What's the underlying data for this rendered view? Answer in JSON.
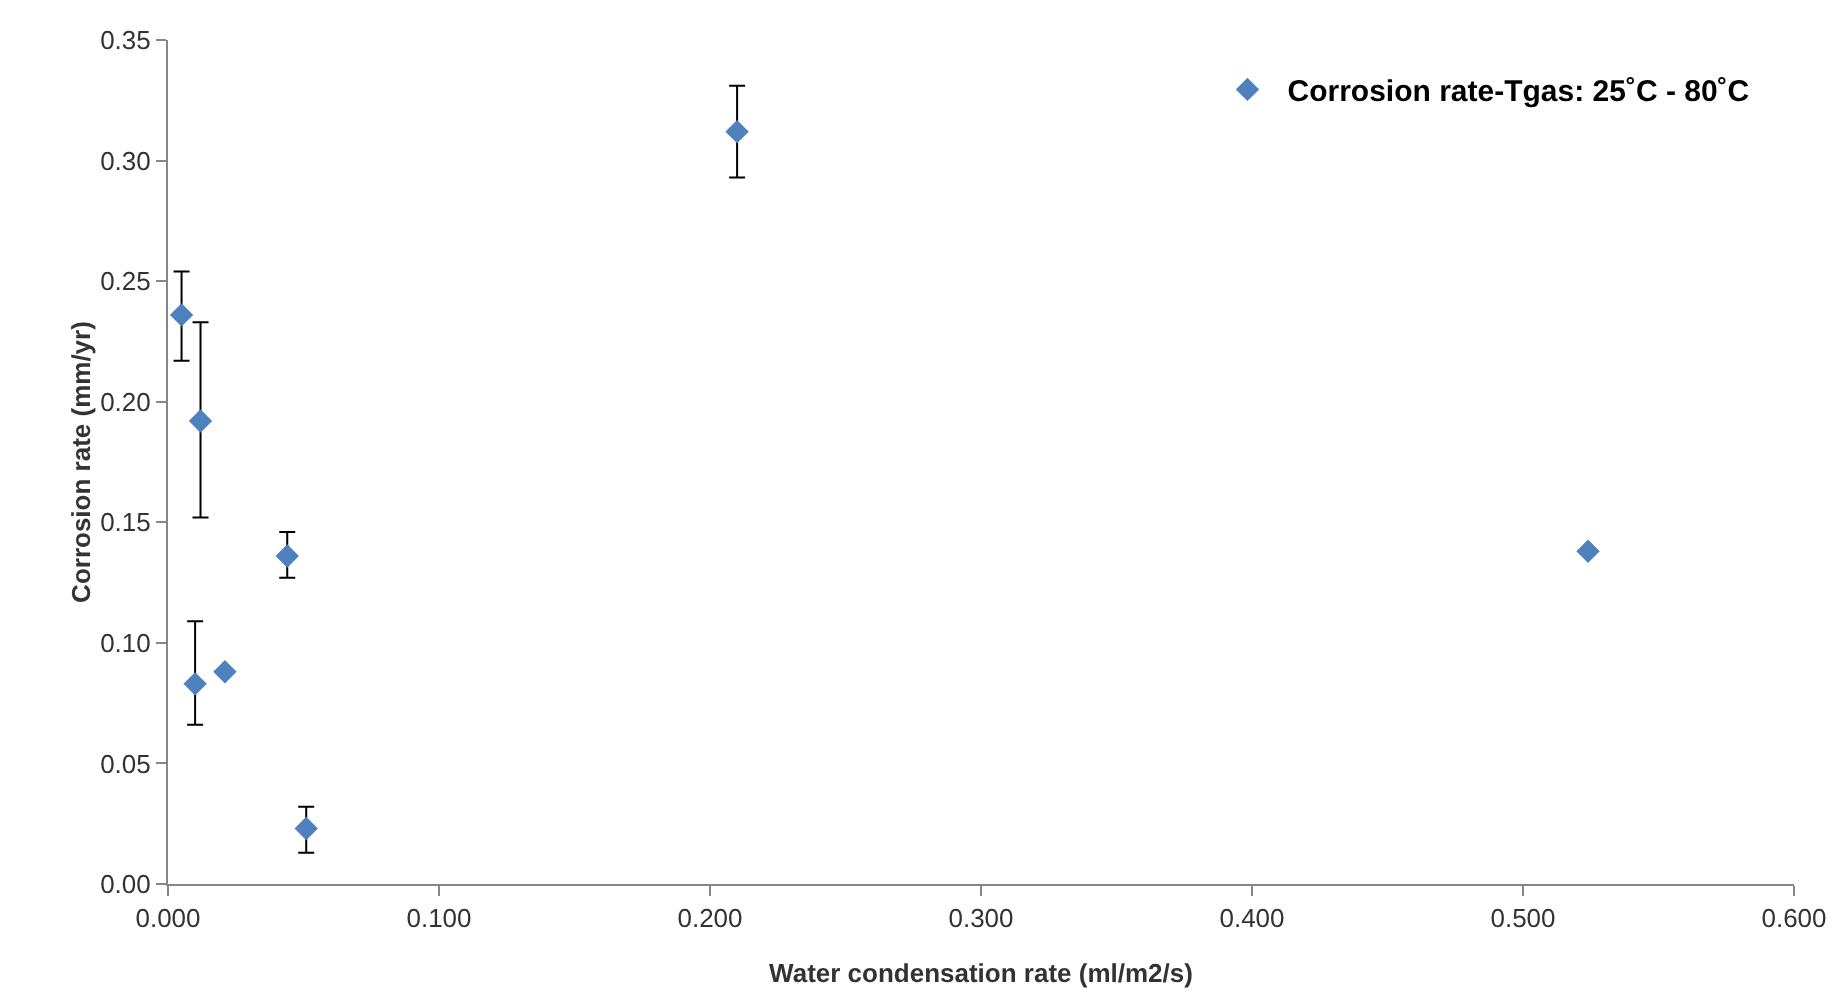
{
  "chart_data": {
    "type": "scatter",
    "xlabel": "Water condensation rate (ml/m2/s)",
    "ylabel": "Corrosion rate (mm/yr)",
    "x": [
      0.005,
      0.012,
      0.01,
      0.021,
      0.044,
      0.051,
      0.21,
      0.524
    ],
    "series": [
      {
        "name": "Corrosion rate-Tgas: 25˚C - 80˚C",
        "color": "#4f81bd",
        "values": [
          0.236,
          0.192,
          0.083,
          0.088,
          0.136,
          0.023,
          0.312,
          0.138
        ],
        "errors": [
          [
            0.217,
            0.254
          ],
          [
            0.152,
            0.233
          ],
          [
            0.066,
            0.109
          ],
          null,
          [
            0.127,
            0.146
          ],
          [
            0.013,
            0.032
          ],
          [
            0.293,
            0.331
          ],
          null
        ]
      }
    ],
    "xlim": [
      0,
      0.6
    ],
    "xticks": [
      {
        "value": 0,
        "label": "0.000"
      },
      {
        "value": 0.1,
        "label": "0.100"
      },
      {
        "value": 0.2,
        "label": "0.200"
      },
      {
        "value": 0.3,
        "label": "0.300"
      },
      {
        "value": 0.4,
        "label": "0.400"
      },
      {
        "value": 0.5,
        "label": "0.500"
      },
      {
        "value": 0.6,
        "label": "0.600"
      }
    ],
    "ylim": [
      0,
      0.35
    ],
    "yticks": [
      {
        "value": 0,
        "label": "0.00"
      },
      {
        "value": 0.05,
        "label": "0.05"
      },
      {
        "value": 0.1,
        "label": "0.10"
      },
      {
        "value": 0.15,
        "label": "0.15"
      },
      {
        "value": 0.2,
        "label": "0.20"
      },
      {
        "value": 0.25,
        "label": "0.25"
      },
      {
        "value": 0.3,
        "label": "0.30"
      },
      {
        "value": 0.35,
        "label": "0.35"
      }
    ],
    "grid": false,
    "legend": "top right",
    "marker": "diamond"
  }
}
